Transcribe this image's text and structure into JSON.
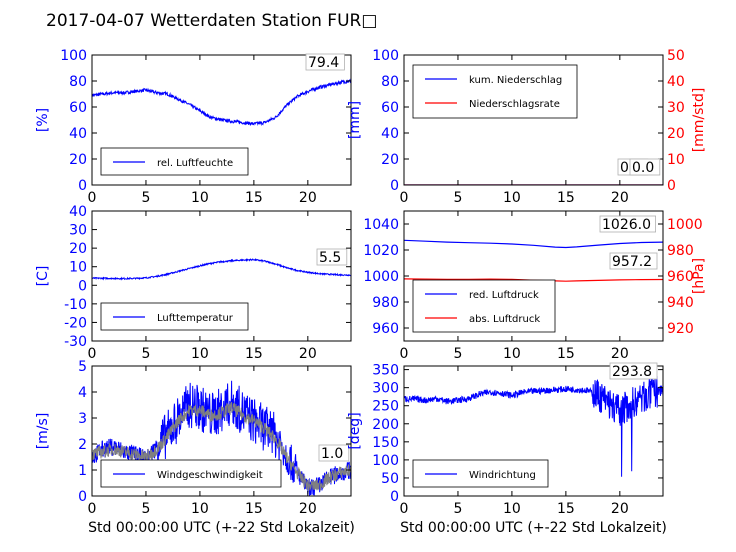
{
  "title": "2017-04-07 Wetterdaten Station FUR□",
  "colors": {
    "blue": "#0000ff",
    "red": "#ff0000",
    "grey": "#808080"
  },
  "chart_data": [
    {
      "id": "humidity",
      "type": "line",
      "x": [
        0,
        1,
        2,
        3,
        4,
        5,
        6,
        7,
        8,
        9,
        10,
        11,
        12,
        13,
        14,
        15,
        16,
        17,
        18,
        19,
        20,
        21,
        22,
        23,
        24
      ],
      "series": [
        {
          "name": "rel. Luftfeuchte",
          "axis": "left",
          "color": "#0000ff",
          "values": [
            69,
            70,
            71,
            71,
            72,
            73,
            71,
            70,
            66,
            62,
            57,
            52,
            50,
            49,
            48,
            47,
            48,
            52,
            61,
            68,
            72,
            75,
            77,
            79,
            80
          ]
        }
      ],
      "xlim": [
        0,
        24
      ],
      "xticks": [
        0,
        5,
        10,
        15,
        20
      ],
      "xlabel": "",
      "ylim": [
        0,
        100
      ],
      "yticks": [
        0,
        20,
        40,
        60,
        80,
        100
      ],
      "ylabel": "[%]",
      "current_label": "79.4",
      "legend": "bottom-left"
    },
    {
      "id": "precip",
      "type": "line",
      "x": [
        0,
        24
      ],
      "series": [
        {
          "name": "kum. Niederschlag",
          "axis": "left",
          "color": "#0000ff",
          "values": [
            0,
            0
          ]
        },
        {
          "name": "Niederschlagsrate",
          "axis": "right",
          "color": "#ff0000",
          "values": [
            0,
            0
          ]
        }
      ],
      "xlim": [
        0,
        24
      ],
      "xticks": [
        0,
        5,
        10,
        15,
        20
      ],
      "xlabel": "",
      "ylim": [
        0,
        100
      ],
      "yticks": [
        0,
        20,
        40,
        60,
        80,
        100
      ],
      "ylabel": "[mm]",
      "y2lim": [
        0,
        50
      ],
      "y2ticks": [
        0,
        10,
        20,
        30,
        40,
        50
      ],
      "y2label": "[mm/std]",
      "current_label": "0.0",
      "current_label2": "0.0",
      "legend": "top-left"
    },
    {
      "id": "temperature",
      "type": "line",
      "x": [
        0,
        1,
        2,
        3,
        4,
        5,
        6,
        7,
        8,
        9,
        10,
        11,
        12,
        13,
        14,
        15,
        16,
        17,
        18,
        19,
        20,
        21,
        22,
        23,
        24
      ],
      "series": [
        {
          "name": "Lufttemperatur",
          "axis": "left",
          "color": "#0000ff",
          "values": [
            3.8,
            3.8,
            3.7,
            3.6,
            3.7,
            4.0,
            4.8,
            6.0,
            7.5,
            9.0,
            10.5,
            11.8,
            12.7,
            13.2,
            13.6,
            13.8,
            13.0,
            11.5,
            9.5,
            8.0,
            7.0,
            6.3,
            5.9,
            5.6,
            5.5
          ]
        }
      ],
      "xlim": [
        0,
        24
      ],
      "xticks": [
        0,
        5,
        10,
        15,
        20
      ],
      "xlabel": "",
      "ylim": [
        -30,
        40
      ],
      "yticks": [
        -30,
        -20,
        -10,
        0,
        10,
        20,
        30,
        40
      ],
      "ylabel": "[C]",
      "current_label": "5.5",
      "legend": "bottom-left"
    },
    {
      "id": "pressure",
      "type": "line",
      "x": [
        0,
        2,
        4,
        6,
        8,
        10,
        12,
        14,
        15,
        16,
        18,
        20,
        22,
        24
      ],
      "series": [
        {
          "name": "red. Luftdruck",
          "axis": "left",
          "color": "#0000ff",
          "values": [
            1027.5,
            1026.8,
            1026.1,
            1025.6,
            1025.2,
            1024.6,
            1023.6,
            1022.2,
            1021.9,
            1022.4,
            1023.8,
            1025.0,
            1025.8,
            1026.1
          ]
        },
        {
          "name": "abs. Luftdruck",
          "axis": "right",
          "color": "#ff0000",
          "values": [
            957.8,
            957.6,
            957.4,
            957.5,
            957.6,
            957.4,
            956.8,
            956.2,
            956.0,
            956.2,
            956.6,
            957.0,
            957.2,
            957.3
          ]
        }
      ],
      "xlim": [
        0,
        24
      ],
      "xticks": [
        0,
        5,
        10,
        15,
        20
      ],
      "xlabel": "",
      "ylim": [
        950,
        1050
      ],
      "yticks": [
        960,
        980,
        1000,
        1020,
        1040
      ],
      "ylabel": "",
      "y2lim": [
        910,
        1010
      ],
      "y2ticks": [
        920,
        940,
        960,
        980,
        1000
      ],
      "y2label": "[hPa]",
      "current_label": "1026.0",
      "current_label2": "957.2",
      "legend": "bottom-left"
    },
    {
      "id": "windspeed",
      "type": "line",
      "x": [
        0,
        1,
        2,
        3,
        4,
        5,
        6,
        7,
        8,
        9,
        10,
        11,
        12,
        13,
        14,
        15,
        16,
        17,
        18,
        19,
        20,
        21,
        22,
        23,
        24
      ],
      "series": [
        {
          "name": "Windgeschwindigkeit",
          "axis": "left",
          "color": "#0000ff",
          "values": [
            1.5,
            1.8,
            1.9,
            1.7,
            1.6,
            1.4,
            1.9,
            2.4,
            3.0,
            3.5,
            3.4,
            3.1,
            3.3,
            3.6,
            3.2,
            2.9,
            2.6,
            2.3,
            1.6,
            0.9,
            0.3,
            0.4,
            0.7,
            0.9,
            1.0
          ]
        },
        {
          "name": "",
          "axis": "left",
          "color": "#808080",
          "values": [
            1.6,
            1.7,
            1.8,
            1.7,
            1.6,
            1.5,
            1.8,
            2.3,
            2.9,
            3.3,
            3.3,
            3.1,
            3.2,
            3.4,
            3.1,
            2.9,
            2.6,
            2.2,
            1.5,
            0.9,
            0.4,
            0.4,
            0.7,
            0.9,
            1.0
          ]
        }
      ],
      "xlim": [
        0,
        24
      ],
      "xticks": [
        0,
        5,
        10,
        15,
        20
      ],
      "xlabel": "Std 00:00:00 UTC (+-22 Std Lokalzeit)",
      "ylim": [
        0,
        5
      ],
      "yticks": [
        0,
        1,
        2,
        3,
        4,
        5
      ],
      "ylabel": "[m/s]",
      "current_label": "1.0",
      "legend": "bottom-left"
    },
    {
      "id": "winddir",
      "type": "line",
      "x": [
        0,
        1,
        2,
        3,
        4,
        5,
        6,
        7,
        8,
        9,
        10,
        11,
        12,
        13,
        14,
        15,
        16,
        17,
        18,
        19,
        20,
        21,
        22,
        23,
        24
      ],
      "series": [
        {
          "name": "Windrichtung",
          "axis": "left",
          "color": "#0000ff",
          "values": [
            270,
            268,
            265,
            270,
            262,
            265,
            270,
            282,
            288,
            285,
            278,
            287,
            290,
            292,
            294,
            296,
            295,
            292,
            280,
            255,
            235,
            255,
            270,
            285,
            294
          ]
        }
      ],
      "xlim": [
        0,
        24
      ],
      "xticks": [
        0,
        5,
        10,
        15,
        20
      ],
      "xlabel": "Std 00:00:00 UTC (+-22 Std Lokalzeit)",
      "ylim": [
        0,
        360
      ],
      "yticks": [
        0,
        50,
        100,
        150,
        200,
        250,
        300,
        350
      ],
      "ylabel": "[deg]",
      "current_label": "293.8",
      "legend": "bottom-left"
    }
  ]
}
